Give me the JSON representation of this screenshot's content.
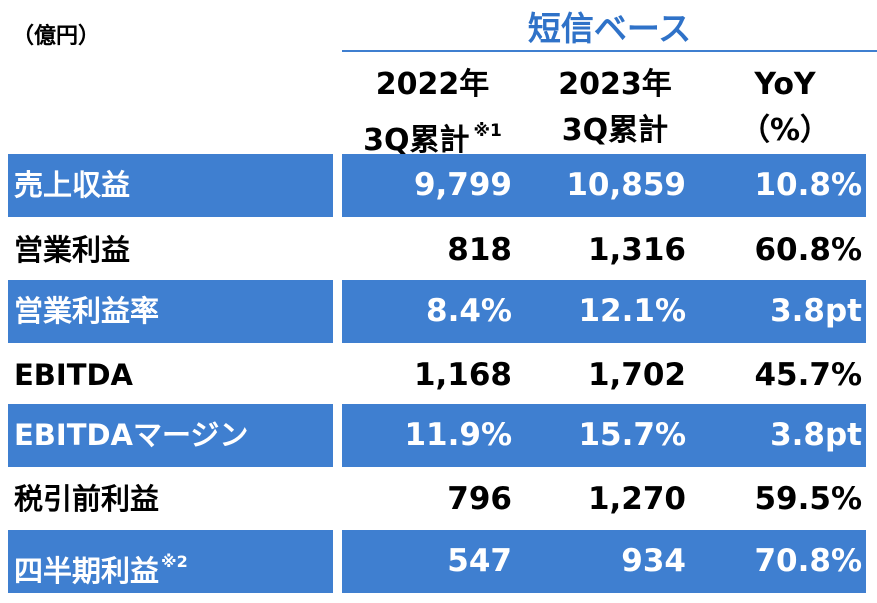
{
  "header": {
    "unit": "（億円）",
    "basis": "短信ベース",
    "columns": [
      {
        "line1": "2022年",
        "line2": "3Q累計",
        "note": "※1"
      },
      {
        "line1": "2023年",
        "line2": "3Q累計",
        "note": ""
      },
      {
        "line1": "YoY",
        "line2": "（%）",
        "note": ""
      }
    ]
  },
  "rows": [
    {
      "label": "売上収益",
      "note": "",
      "v2022": "9,799",
      "v2023": "10,859",
      "yoy": "10.8%",
      "highlight": true
    },
    {
      "label": "営業利益",
      "note": "",
      "v2022": "818",
      "v2023": "1,316",
      "yoy": "60.8%",
      "highlight": false
    },
    {
      "label": "営業利益率",
      "note": "",
      "v2022": "8.4%",
      "v2023": "12.1%",
      "yoy": "3.8pt",
      "highlight": true
    },
    {
      "label": "EBITDA",
      "note": "",
      "v2022": "1,168",
      "v2023": "1,702",
      "yoy": "45.7%",
      "highlight": false
    },
    {
      "label": "EBITDAマージン",
      "note": "",
      "v2022": "11.9%",
      "v2023": "15.7%",
      "yoy": "3.8pt",
      "highlight": true
    },
    {
      "label": "税引前利益",
      "note": "",
      "v2022": "796",
      "v2023": "1,270",
      "yoy": "59.5%",
      "highlight": false
    },
    {
      "label": "四半期利益",
      "note": "※2",
      "v2022": "547",
      "v2023": "934",
      "yoy": "70.8%",
      "highlight": true
    }
  ],
  "colors": {
    "highlight": "#3f7fd0",
    "basis_text": "#2f72c8"
  }
}
